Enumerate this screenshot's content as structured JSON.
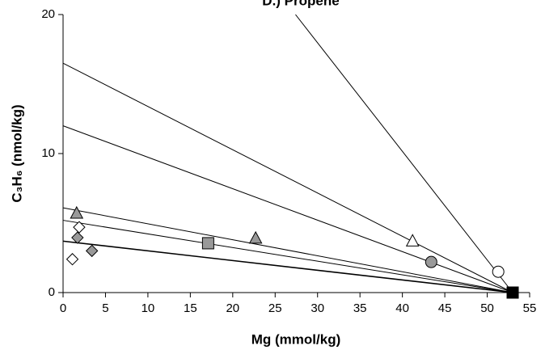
{
  "chart_data": {
    "type": "scatter",
    "title": "D.) Propene",
    "x_label": "Mg (mmol/kg)",
    "y_label": "C₃H₆ (nmol/kg)",
    "xlim": [
      0,
      55
    ],
    "xticks": [
      0,
      5,
      10,
      15,
      20,
      25,
      30,
      35,
      40,
      45,
      50,
      55
    ],
    "ylim": [
      0,
      20
    ],
    "yticks": [
      0,
      10,
      20
    ],
    "lines": [
      {
        "color": "#000000",
        "x": [
          0,
          53
        ],
        "values": [
          3.7,
          0
        ]
      },
      {
        "color": "#000000",
        "x": [
          0,
          53
        ],
        "values": [
          5.2,
          0
        ]
      },
      {
        "color": "#000000",
        "x": [
          0,
          53
        ],
        "values": [
          6.1,
          0
        ]
      },
      {
        "color": "#000000",
        "x": [
          0,
          53
        ],
        "values": [
          12.0,
          0
        ]
      },
      {
        "color": "#000000",
        "x": [
          0,
          53
        ],
        "values": [
          16.5,
          0
        ]
      },
      {
        "color": "#000000",
        "x": [
          27.4,
          53
        ],
        "values": [
          20,
          0
        ]
      }
    ],
    "series": [
      {
        "marker": "diamond",
        "color": "#ffffff",
        "x": [
          1.1,
          1.9
        ],
        "values": [
          2.4,
          4.7
        ]
      },
      {
        "marker": "diamond",
        "color": "#999999",
        "x": [
          1.7,
          3.4
        ],
        "values": [
          3.95,
          3.0
        ]
      },
      {
        "marker": "triangle",
        "color": "#999999",
        "x": [
          1.6,
          22.7
        ],
        "values": [
          5.7,
          3.9
        ]
      },
      {
        "marker": "square",
        "color": "#999999",
        "x": [
          17.1
        ],
        "values": [
          3.55
        ]
      },
      {
        "marker": "triangle",
        "color": "#ffffff",
        "x": [
          41.2
        ],
        "values": [
          3.7
        ]
      },
      {
        "marker": "circle",
        "color": "#999999",
        "x": [
          43.4
        ],
        "values": [
          2.2
        ]
      },
      {
        "marker": "circle",
        "color": "#ffffff",
        "x": [
          51.3
        ],
        "values": [
          1.5
        ]
      },
      {
        "marker": "square",
        "color": "#000000",
        "x": [
          53
        ],
        "values": [
          0
        ]
      }
    ]
  }
}
